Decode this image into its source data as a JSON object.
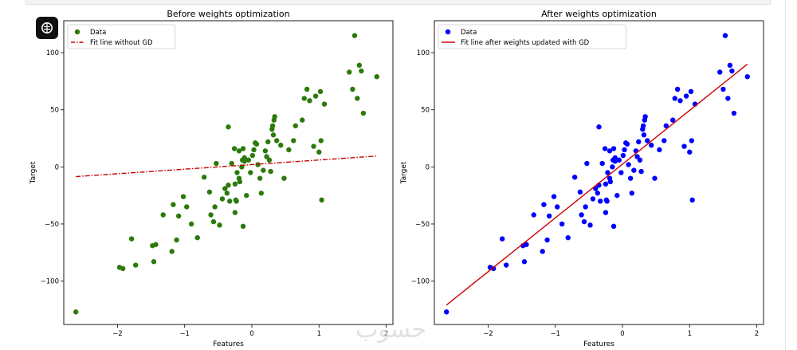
{
  "watermark_text": "حسوب",
  "app_badge_icon": "brain-icon",
  "colors": {
    "left_points": "#2b7a0b",
    "left_line": "#cc0000",
    "right_points": "#0000ff",
    "right_line": "#cc0000"
  },
  "chart_data": [
    {
      "type": "scatter",
      "title": "Before weights optimization",
      "xlabel": "Features",
      "ylabel": "Target",
      "xlim": [
        -2.8,
        2.1
      ],
      "ylim": [
        -138,
        128
      ],
      "xticks": [
        -2,
        -1,
        0,
        1,
        2
      ],
      "yticks": [
        -100,
        -50,
        0,
        50,
        100
      ],
      "grid": false,
      "legend_position": "upper-left",
      "series": [
        {
          "name": "Data",
          "kind": "points",
          "color": "#2b7a0b",
          "points": [
            [
              -2.62,
              -127
            ],
            [
              -1.97,
              -88
            ],
            [
              -1.92,
              -89
            ],
            [
              -1.79,
              -63
            ],
            [
              -1.73,
              -86
            ],
            [
              -1.48,
              -69
            ],
            [
              -1.46,
              -83
            ],
            [
              -1.43,
              -68
            ],
            [
              -1.32,
              -42
            ],
            [
              -1.19,
              -74
            ],
            [
              -1.17,
              -33
            ],
            [
              -1.12,
              -64
            ],
            [
              -1.09,
              -43
            ],
            [
              -1.02,
              -26
            ],
            [
              -0.97,
              -35
            ],
            [
              -0.9,
              -50
            ],
            [
              -0.81,
              -62
            ],
            [
              -0.71,
              -9
            ],
            [
              -0.63,
              -22
            ],
            [
              -0.61,
              -42
            ],
            [
              -0.57,
              -48
            ],
            [
              -0.55,
              -35
            ],
            [
              -0.53,
              3
            ],
            [
              -0.48,
              -51
            ],
            [
              -0.44,
              -28
            ],
            [
              -0.4,
              -19
            ],
            [
              -0.37,
              -23
            ],
            [
              -0.35,
              -16
            ],
            [
              -0.33,
              -30
            ],
            [
              -0.3,
              3
            ],
            [
              -0.25,
              -15
            ],
            [
              -0.25,
              -40
            ],
            [
              -0.23,
              -30
            ],
            [
              -0.24,
              -29
            ],
            [
              -0.22,
              -5
            ],
            [
              -0.19,
              -10
            ],
            [
              -0.18,
              -13
            ],
            [
              -0.15,
              0
            ],
            [
              -0.14,
              6
            ],
            [
              -0.11,
              5
            ],
            [
              -0.13,
              -52
            ],
            [
              -0.08,
              -25
            ],
            [
              -0.35,
              35
            ],
            [
              -0.26,
              16
            ],
            [
              -0.19,
              14
            ],
            [
              -0.13,
              16
            ],
            [
              -0.11,
              8
            ],
            [
              -0.05,
              6
            ],
            [
              -0.02,
              -5
            ],
            [
              0.01,
              10
            ],
            [
              0.03,
              15
            ],
            [
              0.05,
              21
            ],
            [
              0.07,
              20
            ],
            [
              0.09,
              2
            ],
            [
              0.12,
              -10
            ],
            [
              0.14,
              -23
            ],
            [
              0.17,
              -3
            ],
            [
              0.2,
              14
            ],
            [
              0.22,
              9
            ],
            [
              0.24,
              22
            ],
            [
              0.26,
              6
            ],
            [
              0.28,
              -4
            ],
            [
              0.3,
              33
            ],
            [
              0.31,
              36
            ],
            [
              0.32,
              28
            ],
            [
              0.33,
              41
            ],
            [
              0.34,
              44
            ],
            [
              0.37,
              23
            ],
            [
              0.43,
              19
            ],
            [
              0.48,
              -10
            ],
            [
              0.55,
              15
            ],
            [
              0.62,
              23
            ],
            [
              0.65,
              36
            ],
            [
              0.75,
              41
            ],
            [
              0.78,
              60
            ],
            [
              0.82,
              68
            ],
            [
              0.86,
              58
            ],
            [
              0.92,
              18
            ],
            [
              0.95,
              62
            ],
            [
              1.0,
              13
            ],
            [
              1.02,
              66
            ],
            [
              1.03,
              23
            ],
            [
              1.08,
              55
            ],
            [
              1.45,
              83
            ],
            [
              1.5,
              68
            ],
            [
              1.53,
              115
            ],
            [
              1.57,
              60
            ],
            [
              1.6,
              89
            ],
            [
              1.63,
              84
            ],
            [
              1.66,
              47
            ],
            [
              1.86,
              79
            ],
            [
              1.04,
              -29
            ]
          ]
        },
        {
          "name": "Fit line without GD",
          "kind": "line",
          "color": "#cc0000",
          "dash": "dashdot",
          "points": [
            [
              -2.62,
              -8.5
            ],
            [
              1.86,
              9.5
            ]
          ]
        }
      ]
    },
    {
      "type": "scatter",
      "title": "After weights optimization",
      "xlabel": "Features",
      "ylabel": "Target",
      "xlim": [
        -2.8,
        2.1
      ],
      "ylim": [
        -138,
        128
      ],
      "xticks": [
        -2,
        -1,
        0,
        1,
        2
      ],
      "yticks": [
        -100,
        -50,
        0,
        50,
        100
      ],
      "grid": false,
      "legend_position": "upper-left",
      "series": [
        {
          "name": "Data",
          "kind": "points",
          "color": "#0000ff",
          "points": [
            [
              -2.62,
              -127
            ],
            [
              -1.97,
              -88
            ],
            [
              -1.92,
              -89
            ],
            [
              -1.79,
              -63
            ],
            [
              -1.73,
              -86
            ],
            [
              -1.48,
              -69
            ],
            [
              -1.46,
              -83
            ],
            [
              -1.43,
              -68
            ],
            [
              -1.32,
              -42
            ],
            [
              -1.19,
              -74
            ],
            [
              -1.17,
              -33
            ],
            [
              -1.12,
              -64
            ],
            [
              -1.09,
              -43
            ],
            [
              -1.02,
              -26
            ],
            [
              -0.97,
              -35
            ],
            [
              -0.9,
              -50
            ],
            [
              -0.81,
              -62
            ],
            [
              -0.71,
              -9
            ],
            [
              -0.63,
              -22
            ],
            [
              -0.61,
              -42
            ],
            [
              -0.57,
              -48
            ],
            [
              -0.55,
              -35
            ],
            [
              -0.53,
              3
            ],
            [
              -0.48,
              -51
            ],
            [
              -0.44,
              -28
            ],
            [
              -0.4,
              -19
            ],
            [
              -0.37,
              -23
            ],
            [
              -0.35,
              -16
            ],
            [
              -0.33,
              -30
            ],
            [
              -0.3,
              3
            ],
            [
              -0.25,
              -15
            ],
            [
              -0.25,
              -40
            ],
            [
              -0.23,
              -30
            ],
            [
              -0.24,
              -29
            ],
            [
              -0.22,
              -5
            ],
            [
              -0.19,
              -10
            ],
            [
              -0.18,
              -13
            ],
            [
              -0.15,
              0
            ],
            [
              -0.14,
              6
            ],
            [
              -0.11,
              5
            ],
            [
              -0.13,
              -52
            ],
            [
              -0.08,
              -25
            ],
            [
              -0.35,
              35
            ],
            [
              -0.26,
              16
            ],
            [
              -0.19,
              14
            ],
            [
              -0.13,
              16
            ],
            [
              -0.11,
              8
            ],
            [
              -0.05,
              6
            ],
            [
              -0.02,
              -5
            ],
            [
              0.01,
              10
            ],
            [
              0.03,
              15
            ],
            [
              0.05,
              21
            ],
            [
              0.07,
              20
            ],
            [
              0.09,
              2
            ],
            [
              0.12,
              -10
            ],
            [
              0.14,
              -23
            ],
            [
              0.17,
              -3
            ],
            [
              0.2,
              14
            ],
            [
              0.22,
              9
            ],
            [
              0.24,
              22
            ],
            [
              0.26,
              6
            ],
            [
              0.28,
              -4
            ],
            [
              0.3,
              33
            ],
            [
              0.31,
              36
            ],
            [
              0.32,
              28
            ],
            [
              0.33,
              41
            ],
            [
              0.34,
              44
            ],
            [
              0.37,
              23
            ],
            [
              0.43,
              19
            ],
            [
              0.48,
              -10
            ],
            [
              0.55,
              15
            ],
            [
              0.62,
              23
            ],
            [
              0.65,
              36
            ],
            [
              0.75,
              41
            ],
            [
              0.78,
              60
            ],
            [
              0.82,
              68
            ],
            [
              0.86,
              58
            ],
            [
              0.92,
              18
            ],
            [
              0.95,
              62
            ],
            [
              1.0,
              13
            ],
            [
              1.02,
              66
            ],
            [
              1.03,
              23
            ],
            [
              1.08,
              55
            ],
            [
              1.45,
              83
            ],
            [
              1.5,
              68
            ],
            [
              1.53,
              115
            ],
            [
              1.57,
              60
            ],
            [
              1.6,
              89
            ],
            [
              1.63,
              84
            ],
            [
              1.66,
              47
            ],
            [
              1.86,
              79
            ],
            [
              1.04,
              -29
            ]
          ]
        },
        {
          "name": "Fit line after weights updated with GD",
          "kind": "line",
          "color": "#cc0000",
          "dash": "solid",
          "points": [
            [
              -2.62,
              -121
            ],
            [
              1.86,
              90
            ]
          ]
        }
      ]
    }
  ]
}
